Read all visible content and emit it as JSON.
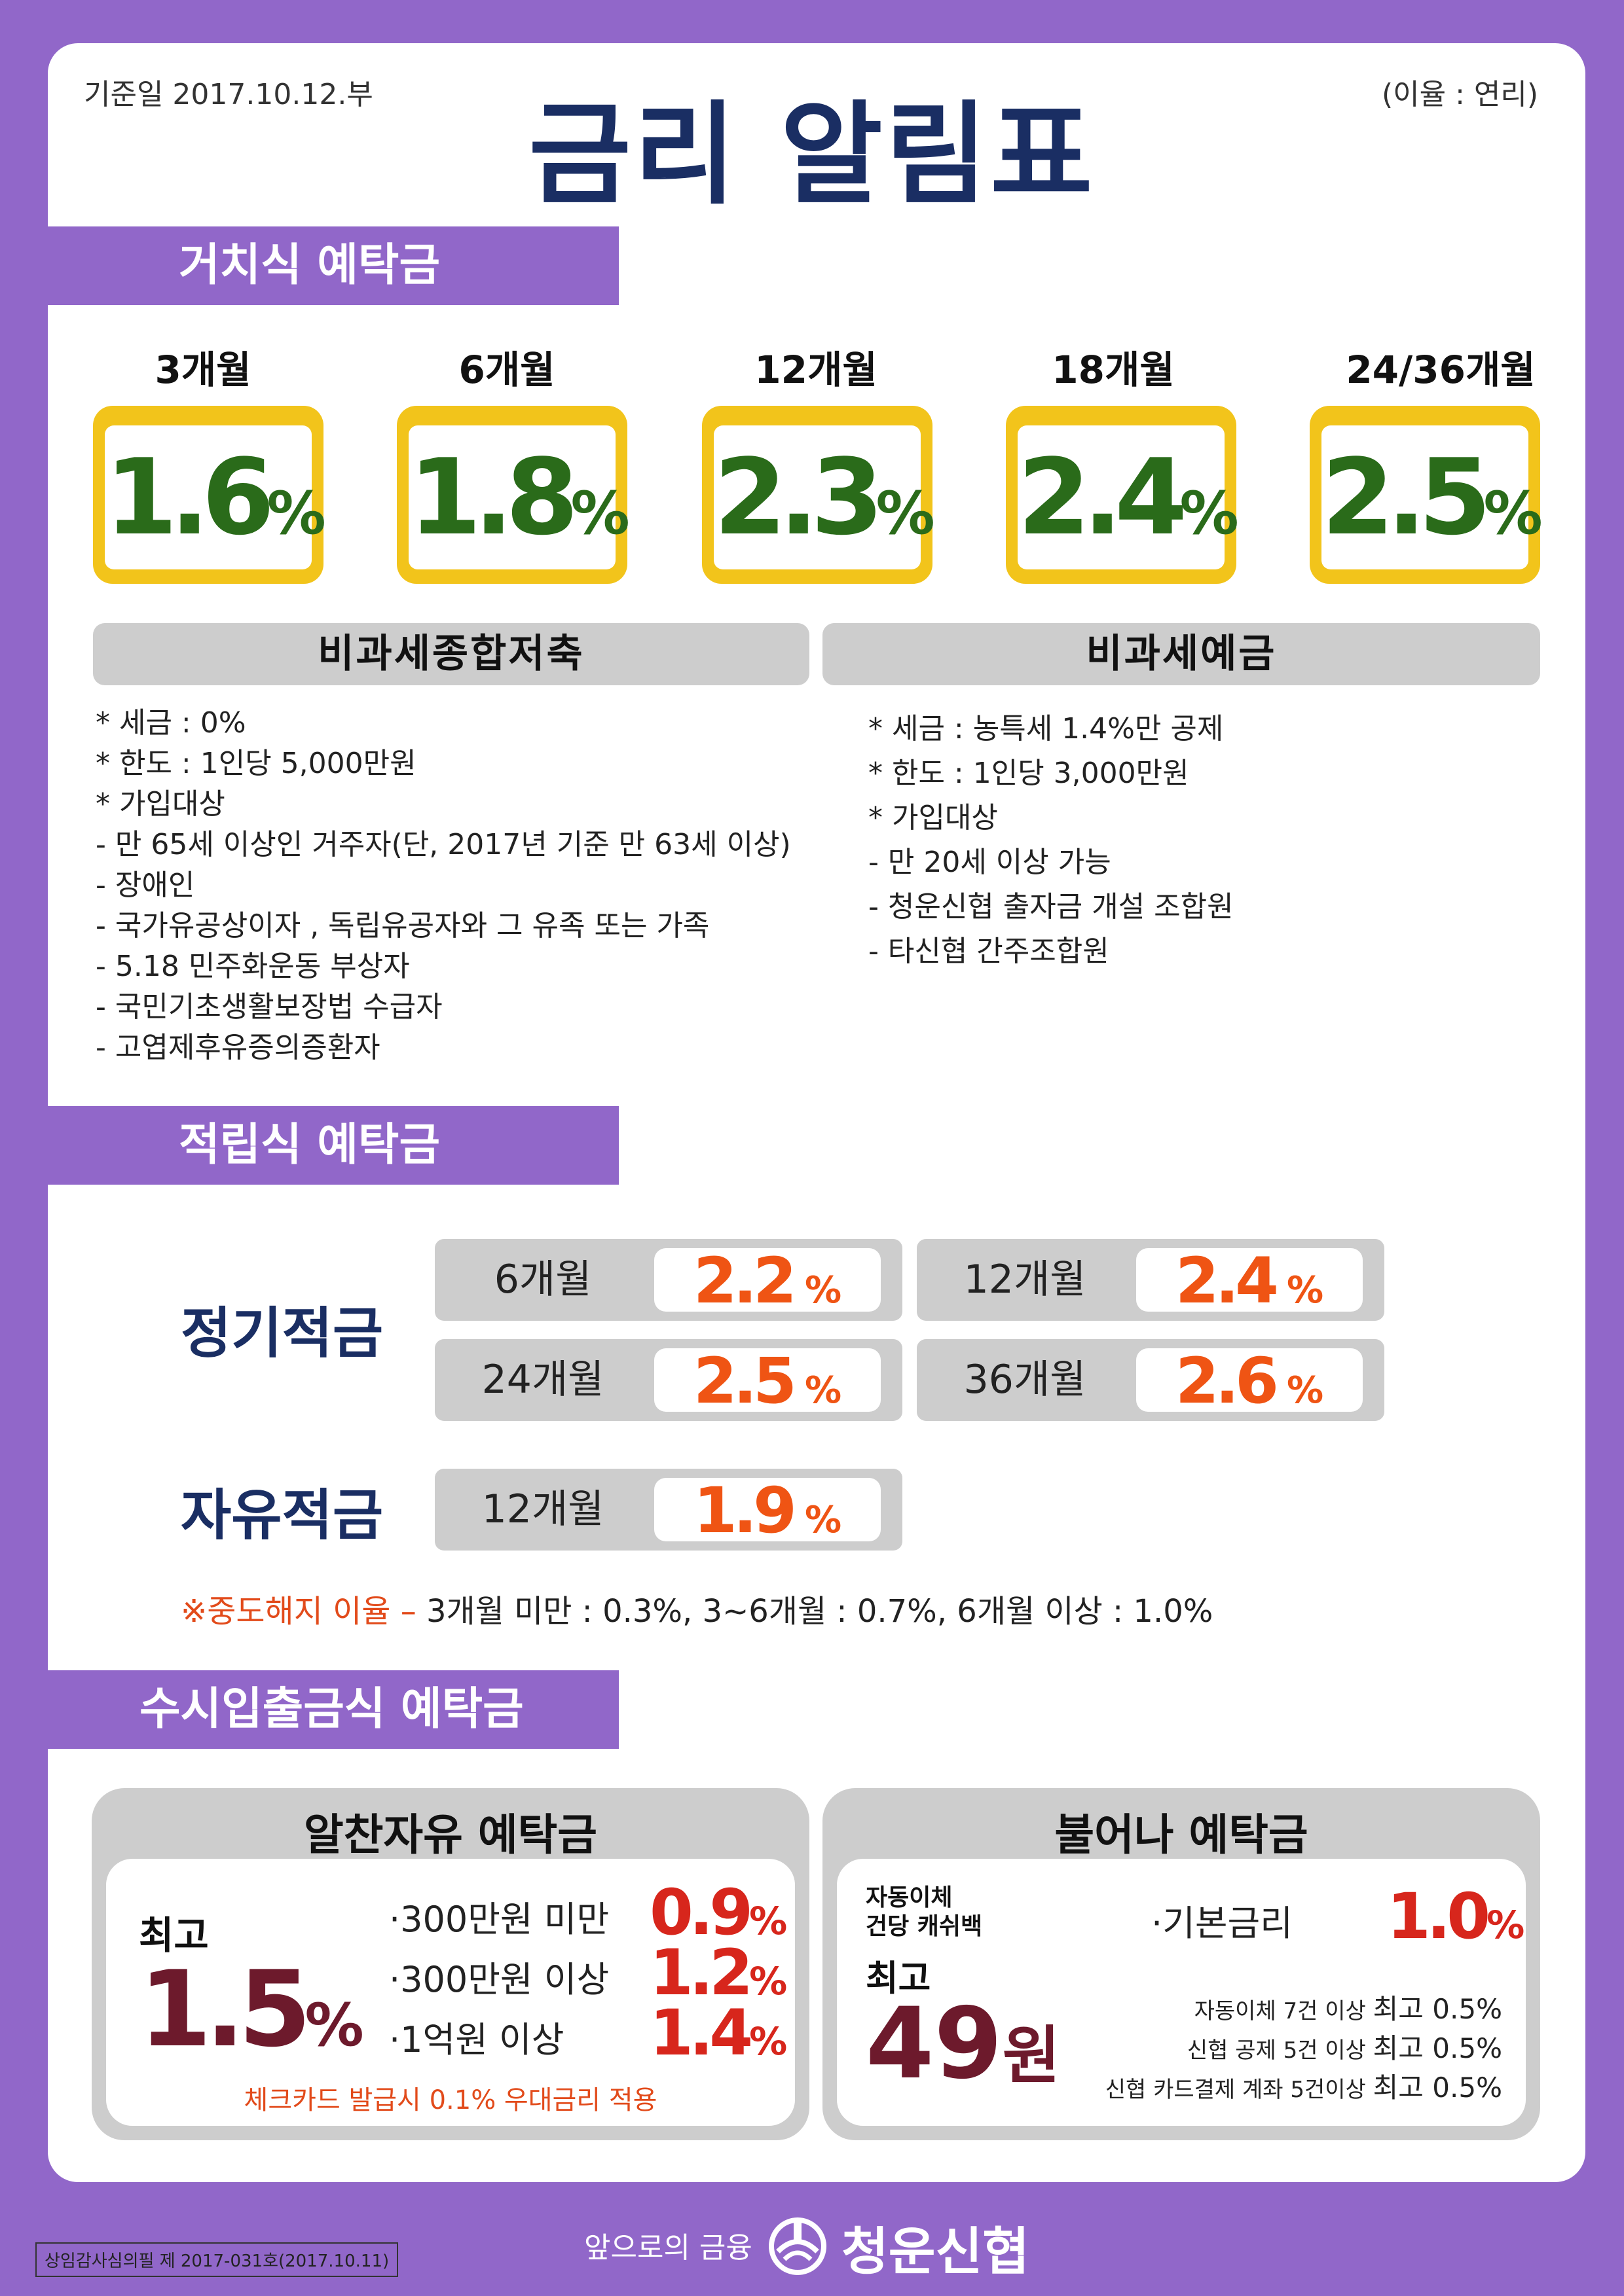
{
  "header": {
    "date": "기준일 2017.10.12.부",
    "title": "금리 알림표",
    "rate_note": "(이율 : 연리)"
  },
  "section1": {
    "tab": "거치식 예탁금",
    "rates": [
      {
        "term": "3개월",
        "value": "1.6",
        "unit": "%"
      },
      {
        "term": "6개월",
        "value": "1.8",
        "unit": "%"
      },
      {
        "term": "12개월",
        "value": "2.3",
        "unit": "%"
      },
      {
        "term": "18개월",
        "value": "2.4",
        "unit": "%"
      },
      {
        "term": "24/36개월",
        "value": "2.5",
        "unit": "%"
      }
    ],
    "left_head": "비과세종합저축",
    "left_items": [
      "* 세금 : 0%",
      "* 한도 : 1인당 5,000만원",
      "* 가입대상",
      "- 만 65세 이상인 거주자(단, 2017년 기준 만 63세 이상)",
      "- 장애인",
      "- 국가유공상이자 , 독립유공자와 그 유족 또는 가족",
      "- 5.18 민주화운동 부상자",
      "- 국민기초생활보장법 수급자",
      "- 고엽제후유증의증환자"
    ],
    "right_head": "비과세예금",
    "right_items": [
      "* 세금 : 농특세 1.4%만 공제",
      "* 한도 : 1인당 3,000만원",
      "* 가입대상",
      "- 만 20세 이상 가능",
      "- 청운신협 출자금 개설 조합원",
      "- 타신협 간주조합원"
    ]
  },
  "section2": {
    "tab": "적립식 예탁금",
    "regular_label": "정기적금",
    "regular": [
      {
        "term": "6개월",
        "value": "2.2",
        "unit": "%"
      },
      {
        "term": "12개월",
        "value": "2.4",
        "unit": "%"
      },
      {
        "term": "24개월",
        "value": "2.5",
        "unit": "%"
      },
      {
        "term": "36개월",
        "value": "2.6",
        "unit": "%"
      }
    ],
    "free_label": "자유적금",
    "free": {
      "term": "12개월",
      "value": "1.9",
      "unit": "%"
    },
    "early_label": "※중도해지 이율 –",
    "early_text": " 3개월 미만 : 0.3%, 3~6개월 : 0.7%, 6개월 이상 : 1.0%"
  },
  "section3": {
    "tab": "수시입출금식 예탁금",
    "left": {
      "title": "알찬자유 예탁금",
      "max_label": "최고",
      "max_value": "1.5",
      "max_unit": "%",
      "tiers": [
        {
          "label": "·300만원 미만",
          "value": "0.9",
          "unit": "%"
        },
        {
          "label": "·300만원 이상",
          "value": "1.2",
          "unit": "%"
        },
        {
          "label": "·1억원 이상",
          "value": "1.4",
          "unit": "%"
        }
      ],
      "note": "체크카드 발급시 0.1% 우대금리 적용"
    },
    "right": {
      "title": "불어나 예탁금",
      "cb_line1": "자동이체",
      "cb_line2": "건당 캐쉬백",
      "max_label": "최고",
      "max_value": "49",
      "max_unit": "원",
      "base_label": "·기본금리",
      "base_value": "1.0",
      "base_unit": "%",
      "conditions": [
        {
          "text": "자동이체 7건 이상",
          "max": "최고 0.5%"
        },
        {
          "text": "신협 공제 5건 이상",
          "max": "최고 0.5%"
        },
        {
          "text": "신협 카드결제 계좌 5건이상",
          "max": "최고 0.5%"
        }
      ]
    }
  },
  "footer": {
    "approval": "상임감사심의필 제 2017-031호(2017.10.11)",
    "slogan": "앞으로의 금융",
    "brand": "청운신협"
  },
  "colors": {
    "background": "#9167c9",
    "title": "#1a2e63",
    "rate_box": "#f2c41b",
    "rate_text": "#2a6b1a",
    "savings_rate": "#ef5414",
    "deposit_rate": "#d7261c",
    "max_text": "#6d1a2c"
  }
}
